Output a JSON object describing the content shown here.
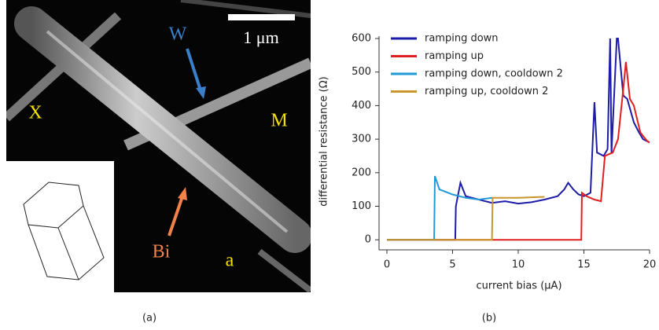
{
  "figure": {
    "panel_a": {
      "scale_label": "1 μm",
      "labels": [
        "W",
        "X",
        "M",
        "Bi",
        "a"
      ]
    },
    "captions": [
      "(a)",
      "(b)"
    ]
  },
  "chart_data": {
    "type": "line",
    "xlabel": "current bias (μA)",
    "ylabel": "differential resistance (Ω)",
    "xlim": [
      -0.6,
      20
    ],
    "ylim": [
      -30,
      600
    ],
    "xticks": [
      0,
      5,
      10,
      15,
      20
    ],
    "yticks": [
      0,
      100,
      200,
      300,
      400,
      500,
      600
    ],
    "legend": "top-left",
    "series": [
      {
        "name": "ramping down",
        "color": "#1c1ca8",
        "x": [
          0,
          5.2,
          5.25,
          5.6,
          6,
          7,
          8,
          9,
          10,
          11,
          12,
          13,
          13.5,
          13.8,
          14.2,
          14.6,
          15,
          15.5,
          15.8,
          16,
          16.5,
          16.8,
          17.0,
          17.1,
          17.5,
          17.6,
          18,
          18.3,
          18.8,
          19.2,
          19.5,
          20
        ],
        "values": [
          0,
          0,
          100,
          170,
          130,
          120,
          110,
          115,
          108,
          112,
          120,
          130,
          150,
          170,
          150,
          135,
          130,
          140,
          410,
          260,
          250,
          270,
          600,
          260,
          600,
          600,
          430,
          420,
          350,
          320,
          300,
          290
        ]
      },
      {
        "name": "ramping up",
        "color": "#e02020",
        "x": [
          0,
          14.8,
          14.85,
          15.2,
          15.8,
          16.3,
          16.6,
          17.2,
          17.6,
          18,
          18.2,
          18.5,
          18.8,
          19.3,
          19.8,
          20
        ],
        "values": [
          0,
          0,
          140,
          130,
          120,
          115,
          250,
          260,
          300,
          450,
          530,
          420,
          400,
          320,
          295,
          290
        ]
      },
      {
        "name": "ramping down, cooldown 2",
        "color": "#1f9ad6",
        "x": [
          0,
          3.6,
          3.65,
          4,
          5,
          6,
          7,
          8
        ],
        "values": [
          0,
          0,
          190,
          150,
          135,
          125,
          120,
          125
        ]
      },
      {
        "name": "ramping up, cooldown 2",
        "color": "#c8962a",
        "x": [
          0,
          8,
          8.05,
          10,
          12
        ],
        "values": [
          0,
          0,
          125,
          125,
          128
        ]
      }
    ]
  }
}
